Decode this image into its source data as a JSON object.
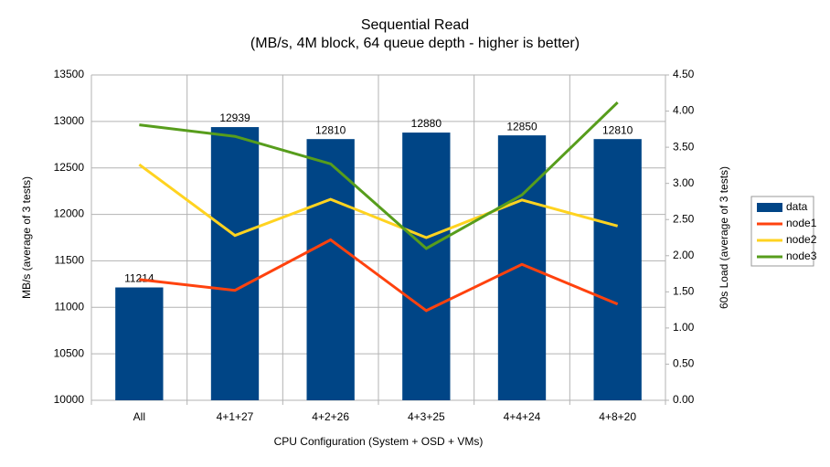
{
  "chart_data": {
    "type": "bar",
    "title": "Sequential Read",
    "subtitle": "(MB/s, 4M block, 64 queue depth - higher is better)",
    "x_label": "CPU Configuration (System + OSD + VMs)",
    "y_label": "MB/s (average of 3 tests)",
    "y2_label": "60s Load (average of 3 tests)",
    "categories": [
      "All",
      "4+1+27",
      "4+2+26",
      "4+3+25",
      "4+4+24",
      "4+8+20"
    ],
    "series": [
      {
        "name": "data",
        "color": "#004586",
        "values": [
          11214,
          12939,
          12810,
          12880,
          12850,
          12810
        ]
      },
      {
        "name": "node1",
        "color": "#ff420e",
        "axis": "y2",
        "values": [
          1.67,
          1.52,
          2.22,
          1.24,
          1.88,
          1.33
        ]
      },
      {
        "name": "node2",
        "color": "#ffd320",
        "axis": "y2",
        "values": [
          3.26,
          2.28,
          2.78,
          2.25,
          2.77,
          2.41
        ]
      },
      {
        "name": "node3",
        "color": "#579d1c",
        "axis": "y2",
        "values": [
          3.81,
          3.65,
          3.27,
          2.1,
          2.84,
          4.12
        ]
      }
    ],
    "ylim": [
      10000,
      13500
    ],
    "yticks": [
      10000,
      10500,
      11000,
      11500,
      12000,
      12500,
      13000,
      13500
    ],
    "y2lim": [
      0,
      4.5
    ],
    "y2ticks": [
      {
        "value": 0,
        "label": "0.00"
      },
      {
        "value": 0.5,
        "label": "0.50"
      },
      {
        "value": 1,
        "label": "1.00"
      },
      {
        "value": 1.5,
        "label": "1.50"
      },
      {
        "value": 2,
        "label": "2.00"
      },
      {
        "value": 2.5,
        "label": "2.50"
      },
      {
        "value": 3,
        "label": "3.00"
      },
      {
        "value": 3.5,
        "label": "3.50"
      },
      {
        "value": 4,
        "label": "4.00"
      },
      {
        "value": 4.5,
        "label": "4.50"
      }
    ],
    "grid": true,
    "legend": "right"
  }
}
